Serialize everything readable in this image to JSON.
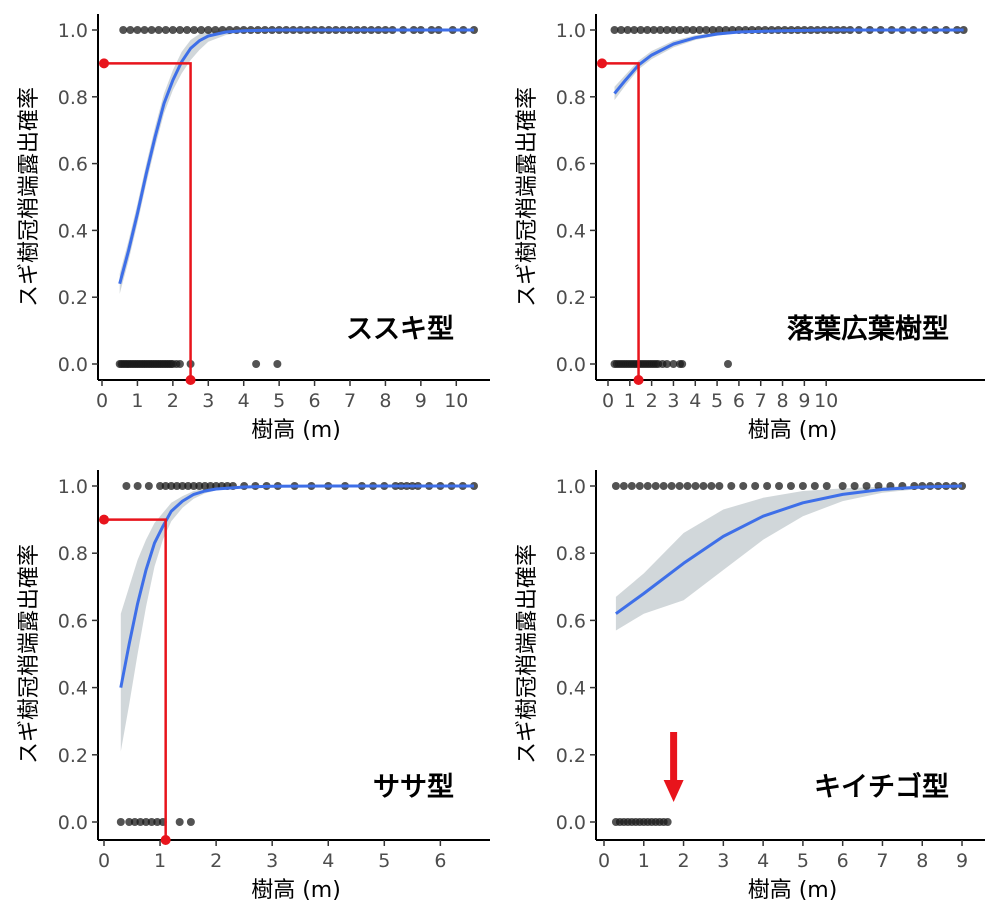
{
  "chart_data": [
    {
      "type": "scatter",
      "panel_label": "ススキ型",
      "xlabel": "樹高 (m)",
      "ylabel": "スギ樹冠梢端露出確率",
      "xlim": [
        0,
        10.5
      ],
      "ylim": [
        0,
        1
      ],
      "x_ticks": [
        "0",
        "1",
        "2",
        "3",
        "4",
        "5",
        "6",
        "7",
        "8",
        "9",
        "10"
      ],
      "y_ticks": [
        "0.0",
        "0.2",
        "0.4",
        "0.6",
        "0.8",
        "1.0"
      ],
      "points_y0_x": [
        0.5,
        0.55,
        0.6,
        0.65,
        0.7,
        0.75,
        0.8,
        0.85,
        0.9,
        0.95,
        1.0,
        1.05,
        1.1,
        1.15,
        1.2,
        1.25,
        1.3,
        1.35,
        1.4,
        1.45,
        1.5,
        1.55,
        1.6,
        1.65,
        1.7,
        1.75,
        1.8,
        1.85,
        1.9,
        1.95,
        2.0,
        2.1,
        2.2,
        2.5,
        4.35,
        4.95
      ],
      "points_y1_x": [
        0.6,
        0.8,
        1.0,
        1.2,
        1.4,
        1.6,
        1.8,
        2.0,
        2.2,
        2.4,
        2.6,
        2.8,
        3.0,
        3.2,
        3.4,
        3.6,
        3.8,
        4.0,
        4.2,
        4.4,
        4.6,
        4.8,
        5.0,
        5.2,
        5.4,
        5.6,
        5.8,
        6.0,
        6.2,
        6.4,
        6.6,
        6.8,
        7.0,
        7.2,
        7.4,
        7.6,
        7.8,
        8.0,
        8.2,
        8.5,
        8.8,
        9.0,
        9.3,
        9.5,
        9.9,
        10.2,
        10.5
      ],
      "fit": {
        "x": [
          0.5,
          0.75,
          1.0,
          1.25,
          1.5,
          1.75,
          2.0,
          2.25,
          2.5,
          2.75,
          3.0,
          3.5,
          4.0,
          5.0,
          6.0,
          8.0,
          10.5
        ],
        "y": [
          0.24,
          0.34,
          0.45,
          0.57,
          0.68,
          0.78,
          0.85,
          0.905,
          0.945,
          0.968,
          0.982,
          0.994,
          0.998,
          1.0,
          1.0,
          1.0,
          1.0
        ],
        "lo": [
          0.21,
          0.31,
          0.42,
          0.54,
          0.65,
          0.75,
          0.82,
          0.87,
          0.91,
          0.94,
          0.965,
          0.985,
          0.995,
          1.0,
          1.0,
          1.0,
          1.0
        ],
        "hi": [
          0.27,
          0.37,
          0.48,
          0.6,
          0.71,
          0.81,
          0.88,
          0.935,
          0.97,
          0.988,
          0.995,
          0.999,
          1.0,
          1.0,
          1.0,
          1.0,
          1.0
        ]
      },
      "threshold": {
        "y": 0.9,
        "x": 2.5
      }
    },
    {
      "type": "scatter",
      "panel_label": "落葉広葉樹型",
      "xlabel": "樹高 (m)",
      "ylabel": "スギ樹冠梢端露出確率",
      "xlim": [
        0,
        16.5
      ],
      "ylim": [
        0,
        1
      ],
      "x_ticks": [
        "0",
        "1",
        "2",
        "3",
        "4",
        "5",
        "6",
        "7",
        "8",
        "9",
        "10"
      ],
      "y_ticks": [
        "0.0",
        "0.2",
        "0.4",
        "0.6",
        "0.8",
        "1.0"
      ],
      "points_y0_x": [
        0.3,
        0.4,
        0.5,
        0.6,
        0.7,
        0.8,
        0.9,
        1.0,
        1.1,
        1.2,
        1.3,
        1.4,
        1.5,
        1.6,
        1.7,
        1.8,
        1.9,
        2.0,
        2.1,
        2.2,
        2.3,
        2.5,
        2.7,
        3.0,
        3.3,
        3.4,
        5.5
      ],
      "points_y1_x": [
        0.3,
        0.6,
        0.9,
        1.2,
        1.5,
        1.8,
        2.1,
        2.4,
        2.7,
        3.0,
        3.3,
        3.6,
        3.9,
        4.2,
        4.5,
        4.8,
        5.1,
        5.4,
        5.7,
        6.0,
        6.3,
        6.6,
        6.9,
        7.2,
        7.5,
        7.8,
        8.1,
        8.4,
        8.7,
        9.0,
        9.3,
        9.6,
        9.9,
        10.2,
        10.5,
        10.8,
        11.1,
        11.5,
        12.0,
        12.5,
        13.0,
        13.5,
        14.0,
        14.5,
        15.0,
        15.5,
        16.0,
        16.3
      ],
      "fit": {
        "x": [
          0.3,
          0.8,
          1.4,
          2.0,
          3.0,
          4.0,
          5.0,
          6.0,
          8.0,
          10.0,
          12.0,
          14.0,
          16.3
        ],
        "y": [
          0.81,
          0.85,
          0.895,
          0.925,
          0.958,
          0.977,
          0.988,
          0.994,
          0.998,
          1.0,
          1.0,
          1.0,
          1.0
        ],
        "lo": [
          0.79,
          0.834,
          0.882,
          0.913,
          0.948,
          0.97,
          0.983,
          0.991,
          0.997,
          0.999,
          1.0,
          1.0,
          1.0
        ],
        "hi": [
          0.83,
          0.866,
          0.908,
          0.937,
          0.968,
          0.984,
          0.993,
          0.997,
          0.999,
          1.0,
          1.0,
          1.0,
          1.0
        ]
      },
      "threshold": {
        "y": 0.9,
        "x": 1.4
      }
    },
    {
      "type": "scatter",
      "panel_label": "ササ型",
      "xlabel": "樹高 (m)",
      "ylabel": "スギ樹冠梢端露出確率",
      "xlim": [
        0,
        6.6
      ],
      "ylim": [
        0,
        1
      ],
      "x_ticks": [
        "0",
        "1",
        "2",
        "3",
        "4",
        "5",
        "6"
      ],
      "y_ticks": [
        "0.0",
        "0.2",
        "0.4",
        "0.6",
        "0.8",
        "1.0"
      ],
      "points_y0_x": [
        0.3,
        0.45,
        0.55,
        0.65,
        0.75,
        0.85,
        0.95,
        1.05,
        1.35,
        1.55
      ],
      "points_y1_x": [
        0.4,
        0.6,
        0.8,
        1.0,
        1.1,
        1.2,
        1.3,
        1.4,
        1.5,
        1.6,
        1.7,
        1.8,
        1.9,
        2.0,
        2.1,
        2.2,
        2.3,
        2.5,
        2.7,
        2.9,
        3.1,
        3.4,
        3.7,
        4.0,
        4.3,
        4.6,
        4.8,
        5.0,
        5.2,
        5.3,
        5.4,
        5.5,
        5.6,
        5.8,
        6.0,
        6.2,
        6.4,
        6.6
      ],
      "fit": {
        "x": [
          0.3,
          0.45,
          0.6,
          0.75,
          0.9,
          1.05,
          1.2,
          1.4,
          1.6,
          1.8,
          2.0,
          2.5,
          3.0,
          4.0,
          6.6
        ],
        "y": [
          0.4,
          0.53,
          0.65,
          0.75,
          0.83,
          0.88,
          0.925,
          0.955,
          0.975,
          0.985,
          0.991,
          0.997,
          0.999,
          1.0,
          1.0
        ],
        "lo": [
          0.21,
          0.35,
          0.5,
          0.64,
          0.76,
          0.84,
          0.895,
          0.935,
          0.962,
          0.978,
          0.987,
          0.995,
          0.998,
          1.0,
          1.0
        ],
        "hi": [
          0.62,
          0.7,
          0.78,
          0.84,
          0.89,
          0.92,
          0.95,
          0.97,
          0.985,
          0.992,
          0.995,
          0.999,
          1.0,
          1.0,
          1.0
        ]
      },
      "threshold": {
        "y": 0.9,
        "x": 1.1
      }
    },
    {
      "type": "scatter",
      "panel_label": "キイチゴ型",
      "xlabel": "樹高 (m)",
      "ylabel": "スギ樹冠梢端露出確率",
      "xlim": [
        0,
        9.1
      ],
      "ylim": [
        0,
        1
      ],
      "x_ticks": [
        "0",
        "1",
        "2",
        "3",
        "4",
        "5",
        "6",
        "7",
        "8",
        "9"
      ],
      "y_ticks": [
        "0.0",
        "0.2",
        "0.4",
        "0.6",
        "0.8",
        "1.0"
      ],
      "points_y0_x": [
        0.3,
        0.4,
        0.5,
        0.6,
        0.7,
        0.8,
        0.9,
        1.0,
        1.1,
        1.2,
        1.3,
        1.4,
        1.5,
        1.6
      ],
      "points_y1_x": [
        0.3,
        0.5,
        0.7,
        0.9,
        1.1,
        1.3,
        1.5,
        1.7,
        1.9,
        2.1,
        2.3,
        2.5,
        2.7,
        2.9,
        3.2,
        3.5,
        3.8,
        4.1,
        4.4,
        4.7,
        5.0,
        5.3,
        5.6,
        6.0,
        6.3,
        6.6,
        6.9,
        7.2,
        7.5,
        7.8,
        8.0,
        8.2,
        8.4,
        8.6,
        8.8,
        9.0
      ],
      "fit": {
        "x": [
          0.3,
          1.0,
          2.0,
          3.0,
          4.0,
          5.0,
          6.0,
          7.0,
          8.0,
          9.0
        ],
        "y": [
          0.62,
          0.68,
          0.77,
          0.85,
          0.91,
          0.95,
          0.975,
          0.99,
          0.997,
          1.0
        ],
        "lo": [
          0.57,
          0.62,
          0.66,
          0.75,
          0.84,
          0.91,
          0.955,
          0.98,
          0.992,
          0.998
        ],
        "hi": [
          0.67,
          0.74,
          0.86,
          0.93,
          0.965,
          0.985,
          0.993,
          0.998,
          1.0,
          1.0
        ]
      },
      "arrow_x": 1.75
    }
  ]
}
